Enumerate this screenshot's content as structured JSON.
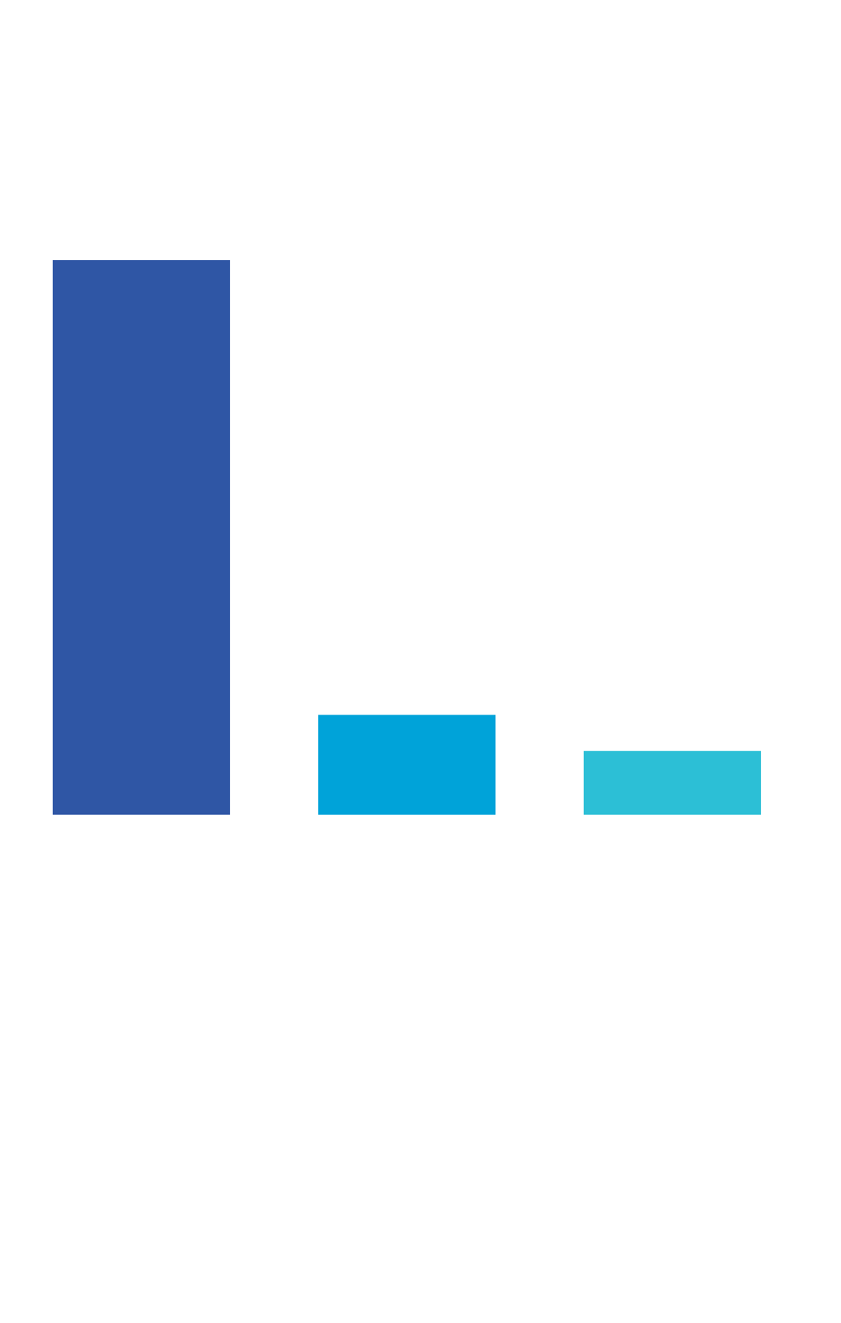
{
  "chart_data": {
    "type": "bar",
    "categories": [
      "",
      "",
      ""
    ],
    "values": [
      100,
      18,
      11.5
    ],
    "colors": [
      "#2f56a5",
      "#00a3d9",
      "#2cbfd6"
    ],
    "title": "",
    "xlabel": "",
    "ylabel": "",
    "ylim": [
      0,
      100
    ],
    "grid": false,
    "axes_visible": false,
    "legend": "none"
  }
}
